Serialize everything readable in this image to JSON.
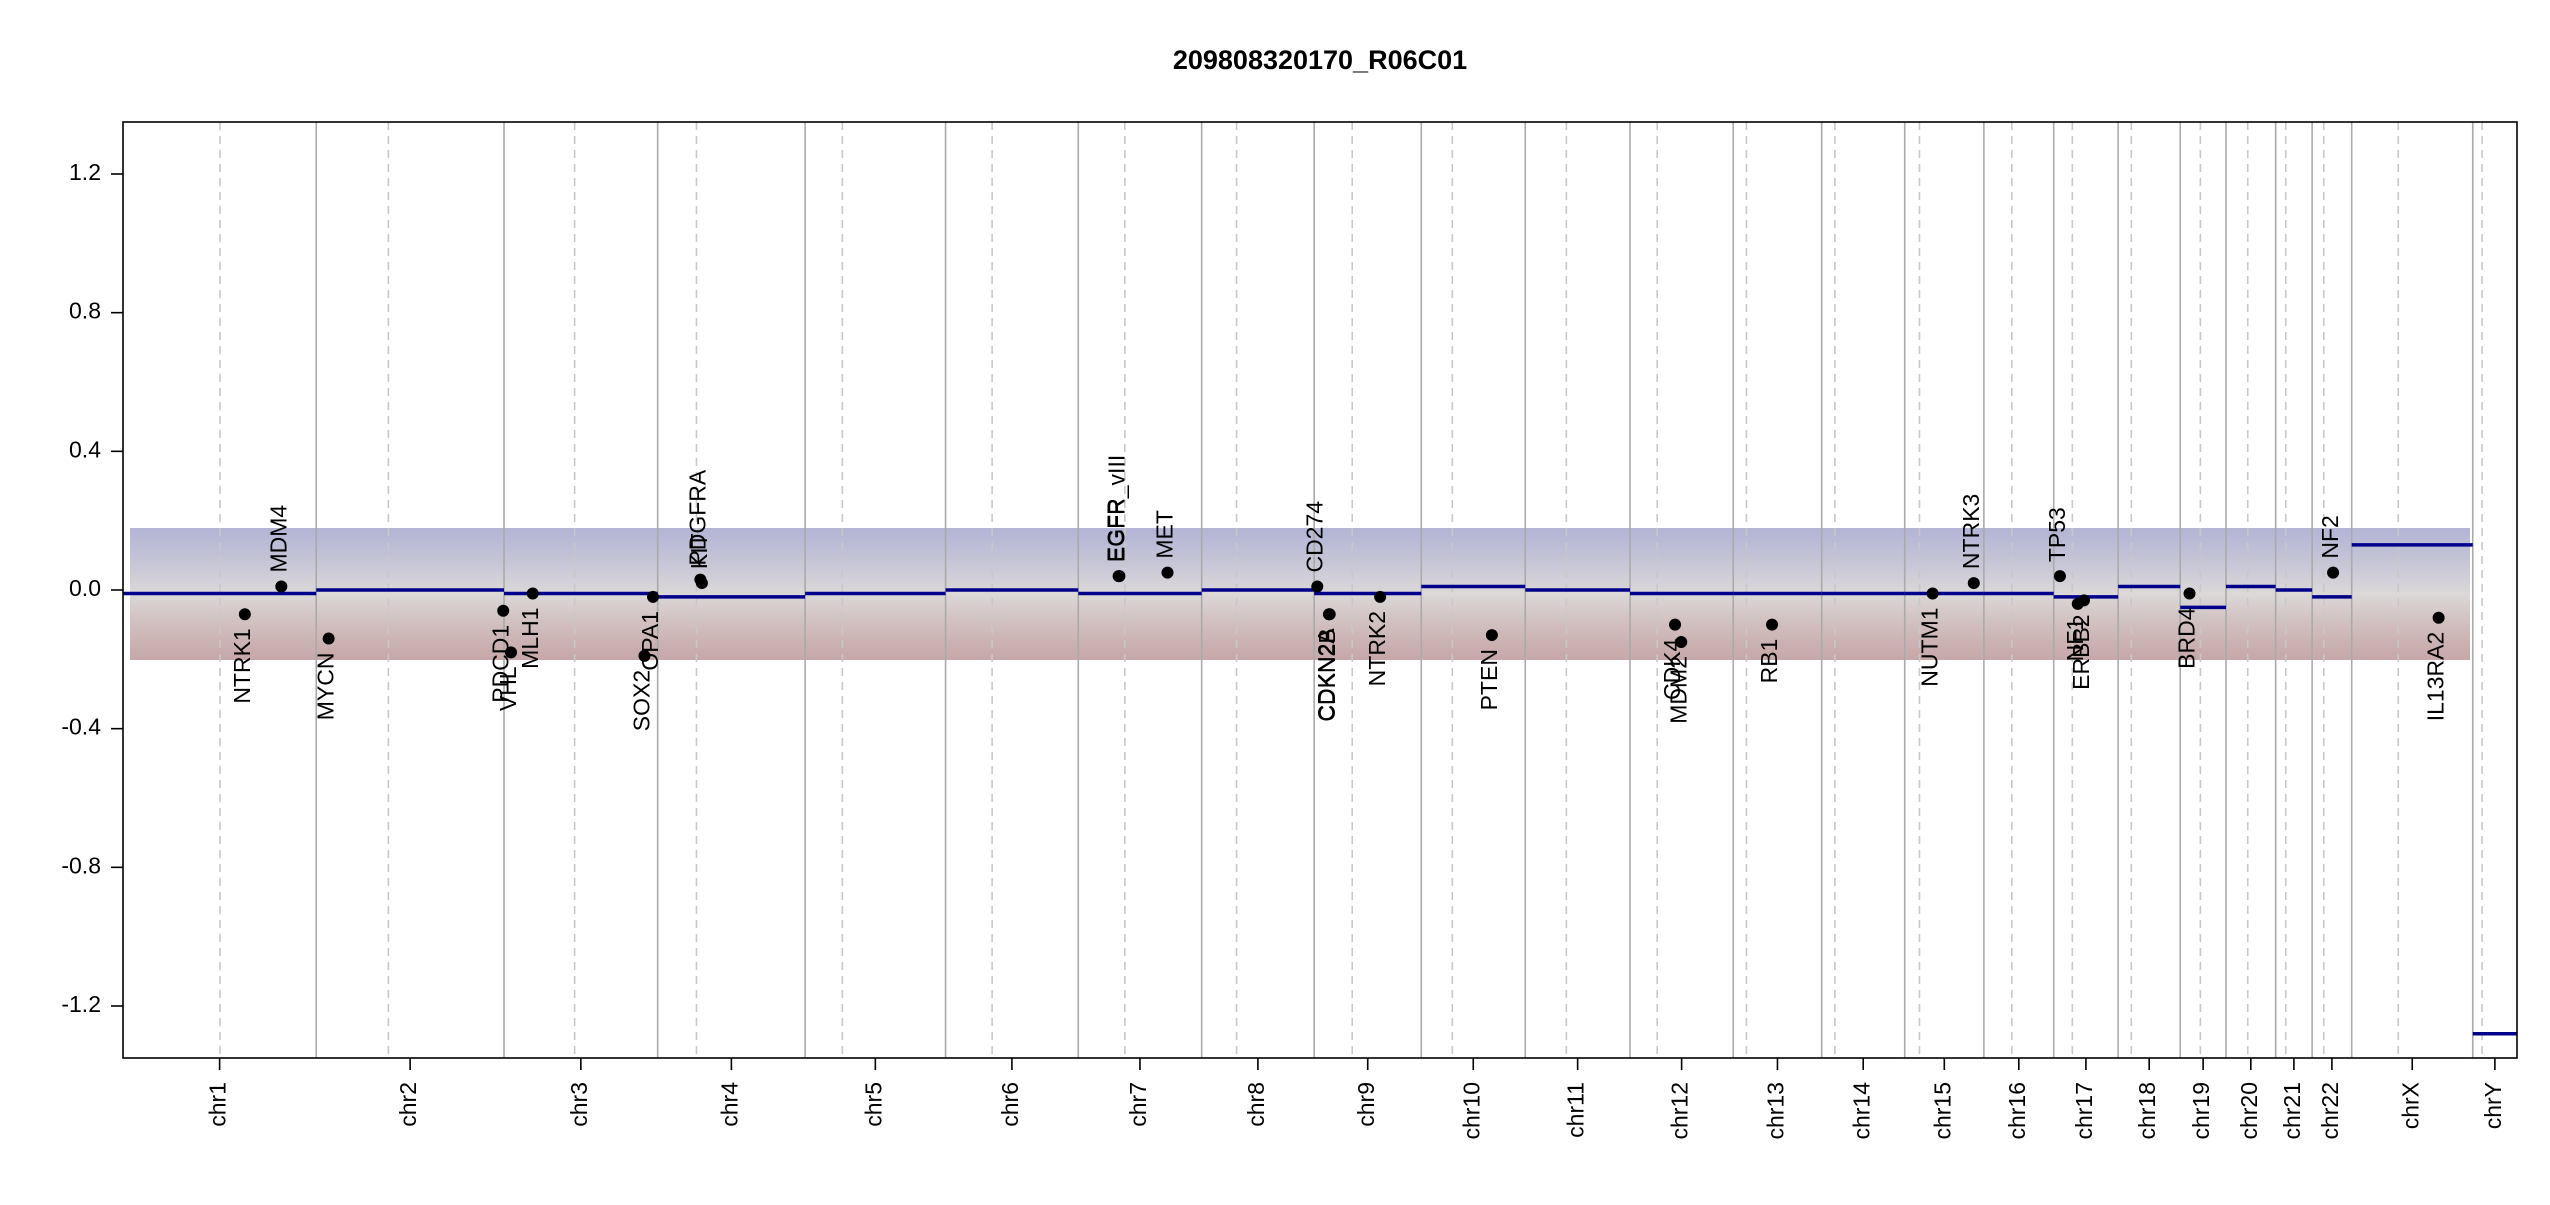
{
  "chart_data": {
    "type": "cnv",
    "title": "209808320170_R06C01",
    "xlim": [
      0,
      3085
    ],
    "ylim": [
      -1.35,
      1.35
    ],
    "yticks": [
      {
        "value": -1.2,
        "label": "-1.2"
      },
      {
        "value": -0.8,
        "label": "-0.8"
      },
      {
        "value": -0.4,
        "label": "-0.4"
      },
      {
        "value": 0,
        "label": "0.0"
      },
      0.4,
      0.8,
      1.2
    ],
    "segment_color": "#00008b",
    "gene_color": "#000000",
    "chromosomes": [
      {
        "name": "chr1",
        "start": 0,
        "end": 249,
        "centromere": 125
      },
      {
        "name": "chr2",
        "start": 249,
        "end": 491,
        "centromere": 342
      },
      {
        "name": "chr3",
        "start": 491,
        "end": 689,
        "centromere": 582
      },
      {
        "name": "chr4",
        "start": 689,
        "end": 879,
        "centromere": 739
      },
      {
        "name": "chr5",
        "start": 879,
        "end": 1060,
        "centromere": 927
      },
      {
        "name": "chr6",
        "start": 1060,
        "end": 1231,
        "centromere": 1120
      },
      {
        "name": "chr7",
        "start": 1231,
        "end": 1390,
        "centromere": 1291
      },
      {
        "name": "chr8",
        "start": 1390,
        "end": 1535,
        "centromere": 1435
      },
      {
        "name": "chr9",
        "start": 1535,
        "end": 1673,
        "centromere": 1584
      },
      {
        "name": "chr10",
        "start": 1673,
        "end": 1807,
        "centromere": 1713
      },
      {
        "name": "chr11",
        "start": 1807,
        "end": 1942,
        "centromere": 1860
      },
      {
        "name": "chr12",
        "start": 1942,
        "end": 2075,
        "centromere": 1977
      },
      {
        "name": "chr13",
        "start": 2075,
        "end": 2189,
        "centromere": 2092
      },
      {
        "name": "chr14",
        "start": 2189,
        "end": 2296,
        "centromere": 2206
      },
      {
        "name": "chr15",
        "start": 2296,
        "end": 2398,
        "centromere": 2315
      },
      {
        "name": "chr16",
        "start": 2398,
        "end": 2488,
        "centromere": 2434
      },
      {
        "name": "chr17",
        "start": 2488,
        "end": 2571,
        "centromere": 2512
      },
      {
        "name": "chr18",
        "start": 2571,
        "end": 2651,
        "centromere": 2588
      },
      {
        "name": "chr19",
        "start": 2651,
        "end": 2710,
        "centromere": 2677
      },
      {
        "name": "chr20",
        "start": 2710,
        "end": 2774,
        "centromere": 2738
      },
      {
        "name": "chr21",
        "start": 2774,
        "end": 2821,
        "centromere": 2787
      },
      {
        "name": "chr22",
        "start": 2821,
        "end": 2872,
        "centromere": 2836
      },
      {
        "name": "chrX",
        "start": 2872,
        "end": 3028,
        "centromere": 2932
      },
      {
        "name": "chrY",
        "start": 3028,
        "end": 3085,
        "centromere": 3040
      }
    ],
    "segments": [
      {
        "x0": 0,
        "x1": 249,
        "value": -0.01
      },
      {
        "x0": 249,
        "x1": 491,
        "value": 0.0
      },
      {
        "x0": 491,
        "x1": 689,
        "value": -0.01
      },
      {
        "x0": 689,
        "x1": 879,
        "value": -0.02
      },
      {
        "x0": 879,
        "x1": 1060,
        "value": -0.01
      },
      {
        "x0": 1060,
        "x1": 1231,
        "value": 0.0
      },
      {
        "x0": 1231,
        "x1": 1390,
        "value": -0.01
      },
      {
        "x0": 1390,
        "x1": 1535,
        "value": 0.0
      },
      {
        "x0": 1535,
        "x1": 1673,
        "value": -0.01
      },
      {
        "x0": 1673,
        "x1": 1807,
        "value": 0.01
      },
      {
        "x0": 1807,
        "x1": 1942,
        "value": 0.0
      },
      {
        "x0": 1942,
        "x1": 2075,
        "value": -0.01
      },
      {
        "x0": 2075,
        "x1": 2189,
        "value": -0.01
      },
      {
        "x0": 2189,
        "x1": 2296,
        "value": -0.01
      },
      {
        "x0": 2296,
        "x1": 2398,
        "value": -0.01
      },
      {
        "x0": 2398,
        "x1": 2488,
        "value": -0.01
      },
      {
        "x0": 2488,
        "x1": 2571,
        "value": -0.02
      },
      {
        "x0": 2571,
        "x1": 2651,
        "value": 0.01
      },
      {
        "x0": 2651,
        "x1": 2710,
        "value": -0.05
      },
      {
        "x0": 2710,
        "x1": 2774,
        "value": 0.01
      },
      {
        "x0": 2774,
        "x1": 2821,
        "value": 0.0
      },
      {
        "x0": 2821,
        "x1": 2872,
        "value": -0.02
      },
      {
        "x0": 2872,
        "x1": 3028,
        "value": 0.13
      },
      {
        "x0": 3028,
        "x1": 3085,
        "value": -1.28
      }
    ],
    "genes": [
      {
        "name": "NTRK1",
        "x": 157,
        "value": -0.07
      },
      {
        "name": "MDM4",
        "x": 204,
        "value": 0.01
      },
      {
        "name": "MYCN",
        "x": 265,
        "value": -0.14
      },
      {
        "name": "PDCD1",
        "x": 490,
        "value": -0.06
      },
      {
        "name": "VHL",
        "x": 500,
        "value": -0.18
      },
      {
        "name": "MLH1",
        "x": 528,
        "value": -0.01
      },
      {
        "name": "SOX2",
        "x": 672,
        "value": -0.19
      },
      {
        "name": "OPA1",
        "x": 683,
        "value": -0.02
      },
      {
        "name": "PDGFRA",
        "x": 744,
        "value": 0.03
      },
      {
        "name": "KIT",
        "x": 746,
        "value": 0.02
      },
      {
        "name": "EGFR",
        "x": 1283,
        "value": 0.04
      },
      {
        "name": "EGFR_vIII",
        "x": 1284,
        "value": 0.04
      },
      {
        "name": "MET",
        "x": 1346,
        "value": 0.05
      },
      {
        "name": "CD274",
        "x": 1539,
        "value": 0.01
      },
      {
        "name": "CDKN2A",
        "x": 1554,
        "value": -0.07
      },
      {
        "name": "CDKN2B",
        "x": 1555,
        "value": -0.07
      },
      {
        "name": "NTRK2",
        "x": 1620,
        "value": -0.02
      },
      {
        "name": "PTEN",
        "x": 1764,
        "value": -0.13
      },
      {
        "name": "CDK4",
        "x": 2000,
        "value": -0.1
      },
      {
        "name": "MDM2",
        "x": 2008,
        "value": -0.15
      },
      {
        "name": "RB1",
        "x": 2125,
        "value": -0.1
      },
      {
        "name": "NUTM1",
        "x": 2332,
        "value": -0.01
      },
      {
        "name": "NTRK3",
        "x": 2385,
        "value": 0.02
      },
      {
        "name": "TP53",
        "x": 2496,
        "value": 0.04
      },
      {
        "name": "NF1",
        "x": 2519,
        "value": -0.04
      },
      {
        "name": "ERBB2",
        "x": 2527,
        "value": -0.03
      },
      {
        "name": "BRD4",
        "x": 2663,
        "value": -0.01
      },
      {
        "name": "NF2",
        "x": 2848,
        "value": 0.05
      },
      {
        "name": "IL13RA2",
        "x": 2984,
        "value": -0.08
      }
    ]
  }
}
